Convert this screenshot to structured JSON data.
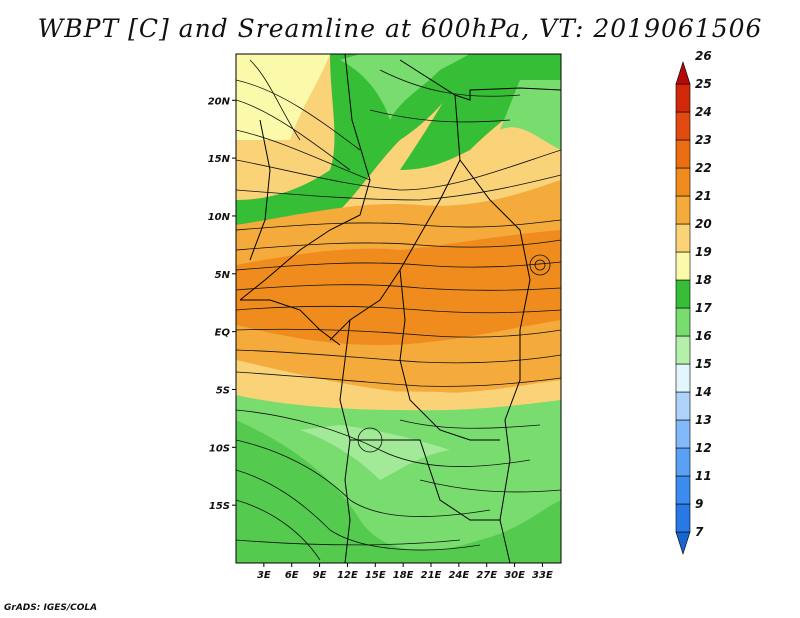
{
  "title": "WBPT [C] and Sreamline at 600hPa, VT: 2019061506",
  "credit": "GrADS: IGES/COLA",
  "map": {
    "lon_range": [
      0,
      35
    ],
    "lat_range": [
      -20,
      24
    ],
    "x_ticks": [
      {
        "value": 3,
        "label": "3E"
      },
      {
        "value": 6,
        "label": "6E"
      },
      {
        "value": 9,
        "label": "9E"
      },
      {
        "value": 12,
        "label": "12E"
      },
      {
        "value": 15,
        "label": "15E"
      },
      {
        "value": 18,
        "label": "18E"
      },
      {
        "value": 21,
        "label": "21E"
      },
      {
        "value": 24,
        "label": "24E"
      },
      {
        "value": 27,
        "label": "27E"
      },
      {
        "value": 30,
        "label": "30E"
      },
      {
        "value": 33,
        "label": "33E"
      }
    ],
    "y_ticks": [
      {
        "value": 20,
        "label": "20N"
      },
      {
        "value": 15,
        "label": "15N"
      },
      {
        "value": 10,
        "label": "10N"
      },
      {
        "value": 5,
        "label": "5N"
      },
      {
        "value": 0,
        "label": "EQ"
      },
      {
        "value": -5,
        "label": "5S"
      },
      {
        "value": -10,
        "label": "10S"
      },
      {
        "value": -15,
        "label": "15S"
      }
    ]
  },
  "colorbar": {
    "levels": [
      "7",
      "9",
      "11",
      "12",
      "13",
      "14",
      "15",
      "16",
      "17",
      "18",
      "19",
      "20",
      "21",
      "22",
      "23",
      "24",
      "25",
      "26"
    ],
    "colors": [
      "#1a64d2",
      "#2878e6",
      "#3c8cf0",
      "#5aa0f5",
      "#82b9f8",
      "#afd2fa",
      "#e1f5fa",
      "#b4f0aa",
      "#78dc6e",
      "#37be37",
      "#fafaaa",
      "#fad278",
      "#f5aa3c",
      "#f08c1e",
      "#eb6e14",
      "#e14b0f",
      "#d2280a",
      "#b40a0a"
    ]
  }
}
